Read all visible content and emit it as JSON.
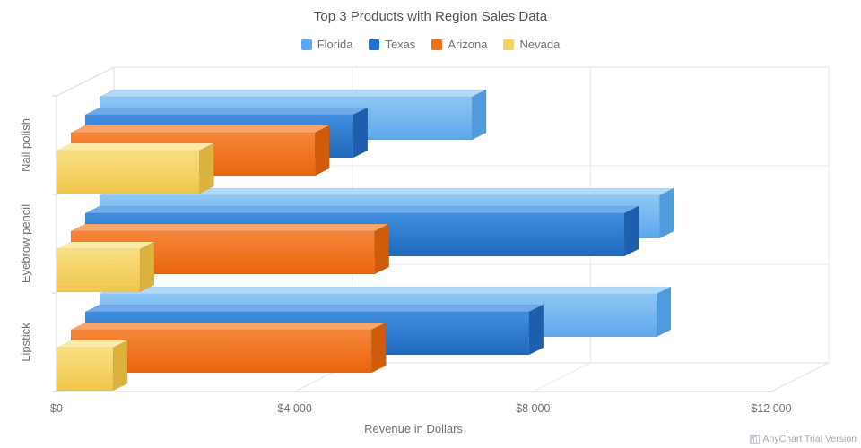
{
  "chart_data": {
    "type": "bar",
    "style": "3d",
    "orientation": "horizontal",
    "title": "Top 3 Products with Region Sales Data",
    "xlabel": "Revenue in Dollars",
    "ylabel": "",
    "categories": [
      "Nail polish",
      "Eyebrow pencil",
      "Lipstick"
    ],
    "series": [
      {
        "name": "Florida",
        "color": "#5ba8ef",
        "face": {
          "top": "#b3d9f9",
          "side": "#4f9bdd",
          "front": [
            "#8fc7f5",
            "#5da7ec"
          ]
        },
        "values": [
          6250,
          9400,
          9350
        ]
      },
      {
        "name": "Texas",
        "color": "#1f72ce",
        "face": {
          "top": "#6faae9",
          "side": "#1d5fae",
          "front": [
            "#418ee0",
            "#1f69bd"
          ]
        },
        "values": [
          4500,
          9050,
          7450
        ]
      },
      {
        "name": "Arizona",
        "color": "#ef6f17",
        "face": {
          "top": "#f9a468",
          "side": "#d05c0b",
          "front": [
            "#f6863b",
            "#e9650d"
          ]
        },
        "values": [
          4100,
          5100,
          5050
        ]
      },
      {
        "name": "Nevada",
        "color": "#f4d160",
        "face": {
          "top": "#fce9a8",
          "side": "#dcb23f",
          "front": [
            "#f9df82",
            "#f0c64a"
          ]
        },
        "values": [
          2400,
          1400,
          950
        ]
      }
    ],
    "xlim": [
      0,
      12000
    ],
    "x_ticks": {
      "values": [
        0,
        4000,
        8000,
        12000
      ],
      "labels": [
        "$0",
        "$4 000",
        "$8 000",
        "$12 000"
      ]
    },
    "grid": true,
    "legend_position": "top",
    "colors": {
      "grid_line": "#e8e8e8",
      "wall_border": "#dcdcdc",
      "axis_line": "#cfcfcf",
      "label_text": "#6d7278"
    }
  },
  "watermark": {
    "text": "AnyChart Trial Version"
  }
}
